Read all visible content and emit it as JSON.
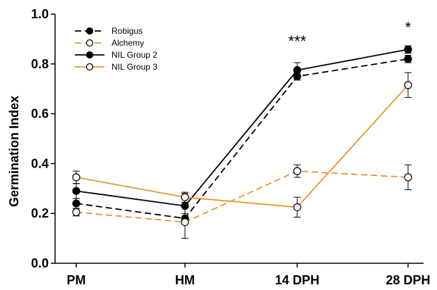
{
  "chart_data": {
    "type": "line",
    "title": "",
    "xlabel": "",
    "ylabel": "Germination Index",
    "categories": [
      "PM",
      "HM",
      "14 DPH",
      "28 DPH"
    ],
    "ylim": [
      0,
      1.0
    ],
    "yticks": [
      "0.0",
      "0.2",
      "0.4",
      "0.6",
      "0.8",
      "1.0"
    ],
    "grid": false,
    "legend_position": "top-left",
    "series": [
      {
        "name": "Robigus",
        "color": "#000000",
        "dash": "dashed",
        "marker": "filled-circle",
        "values": [
          0.24,
          0.18,
          0.75,
          0.82
        ],
        "errors": [
          0.02,
          0.02,
          0.015,
          0.015
        ]
      },
      {
        "name": "Alchemy",
        "color": "#E8952C",
        "dash": "dashed",
        "marker": "open-circle",
        "values": [
          0.205,
          0.165,
          0.37,
          0.345
        ],
        "errors": [
          0.015,
          0.065,
          0.025,
          0.05
        ]
      },
      {
        "name": "NIL Group 2",
        "color": "#000000",
        "dash": "solid",
        "marker": "filled-circle",
        "values": [
          0.29,
          0.23,
          0.775,
          0.858
        ],
        "errors": [
          0.03,
          0.05,
          0.03,
          0.015
        ]
      },
      {
        "name": "NIL Group 3",
        "color": "#E8952C",
        "dash": "solid",
        "marker": "open-circle",
        "values": [
          0.345,
          0.265,
          0.225,
          0.715
        ],
        "errors": [
          0.025,
          0.02,
          0.04,
          0.05
        ]
      }
    ],
    "annotations": [
      {
        "category_index": 2,
        "y": 0.87,
        "text": "***"
      },
      {
        "category_index": 3,
        "y": 0.925,
        "text": "*"
      }
    ]
  }
}
